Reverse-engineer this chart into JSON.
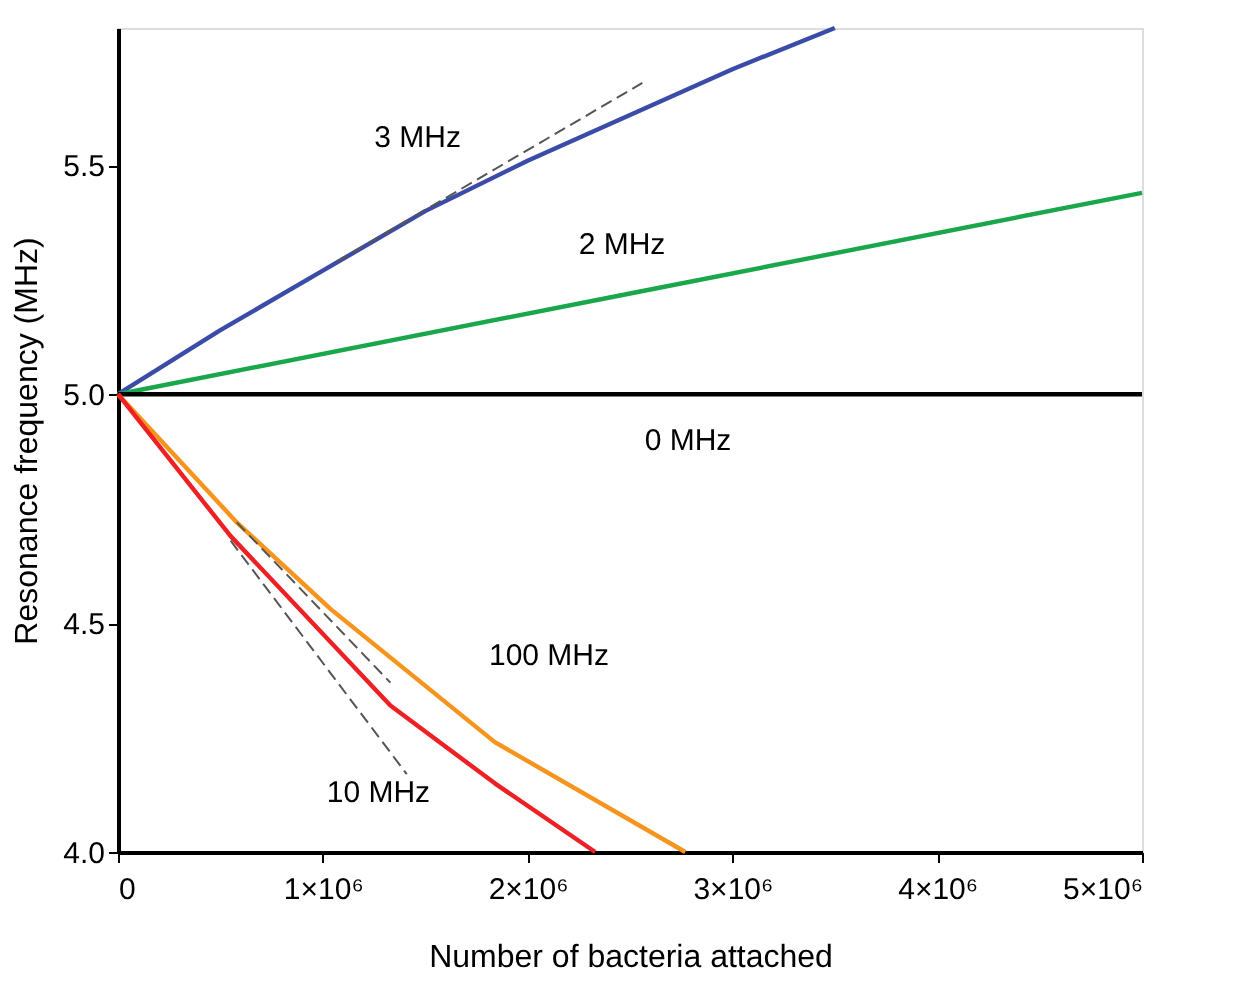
{
  "chart_data": {
    "type": "line",
    "xlabel": "Number of  bacteria attached",
    "ylabel": "Resonance frequency (MHz)",
    "xlim": [
      0,
      5000000
    ],
    "ylim": [
      4.0,
      5.8
    ],
    "xticks": [
      0,
      {
        "value": 1000000,
        "label": "1×10⁶"
      },
      {
        "value": 2000000,
        "label": "2×10⁶"
      },
      {
        "value": 3000000,
        "label": "3×10⁶"
      },
      {
        "value": 4000000,
        "label": "4×10⁶"
      },
      {
        "value": 5000000,
        "label": "5×10⁶"
      }
    ],
    "yticks": [
      {
        "value": 4.0,
        "label": "4.0"
      },
      {
        "value": 4.5,
        "label": "4.5"
      },
      {
        "value": 5.0,
        "label": "5.0"
      },
      {
        "value": 5.5,
        "label": "5.5"
      }
    ],
    "grid": false,
    "marker": "none",
    "line_style": "solid",
    "series": [
      {
        "name": "3 MHz",
        "color": "#3b4ba8",
        "x": [
          0,
          500000,
          1000000,
          1500000,
          2000000,
          2500000,
          3000000,
          3500000
        ],
        "values": [
          5.0,
          5.14,
          5.27,
          5.4,
          5.51,
          5.61,
          5.71,
          5.8
        ]
      },
      {
        "name": "2 MHz",
        "color": "#1aa64a",
        "x": [
          0,
          2500000,
          5000000
        ],
        "values": [
          5.0,
          5.22,
          5.44
        ]
      },
      {
        "name": "0 MHz",
        "color": "#000000",
        "x": [
          0,
          5000000
        ],
        "values": [
          5.0,
          5.0
        ]
      },
      {
        "name": "100 MHz",
        "color": "#f7941d",
        "x": [
          0,
          580000,
          1040000,
          1840000,
          2770000
        ],
        "values": [
          5.0,
          4.72,
          4.53,
          4.24,
          4.0
        ]
      },
      {
        "name": "10 MHz",
        "color": "#ed2024",
        "x": [
          0,
          550000,
          1330000,
          1840000,
          2330000
        ],
        "values": [
          5.0,
          4.69,
          4.32,
          4.15,
          4.0
        ]
      },
      {
        "color": "#555555",
        "line_style": "dashed",
        "x": [
          1070000,
          2560000
        ],
        "values": [
          5.29,
          5.68
        ]
      },
      {
        "color": "#555555",
        "line_style": "dashed",
        "x": [
          580000,
          1330000
        ],
        "values": [
          4.72,
          4.37
        ]
      },
      {
        "color": "#555555",
        "line_style": "dashed",
        "x": [
          550000,
          1410000
        ],
        "values": [
          4.68,
          4.17
        ]
      }
    ]
  }
}
